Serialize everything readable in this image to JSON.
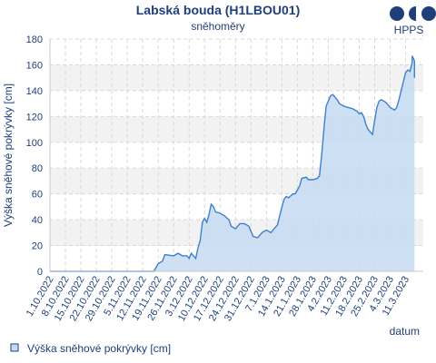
{
  "brand": {
    "text": "HPPS",
    "color": "#1f3f7a"
  },
  "chart_data": {
    "type": "area",
    "title": "Labská bouda (H1LBOU01)",
    "subtitle": "sněhoměry",
    "xlabel": "datum",
    "ylabel": "Výška sněhové pokrývky [cm]",
    "ylim": [
      0,
      180
    ],
    "yticks": [
      0,
      20,
      40,
      60,
      80,
      100,
      120,
      140,
      160,
      180
    ],
    "grid": true,
    "legend_position": "bottom-left",
    "x_start": "2022-10-01",
    "x_end": "2023-03-19",
    "xtick_labels": [
      "1.10.2022",
      "8.10.2022",
      "15.10.2022",
      "22.10.2022",
      "29.10.2022",
      "5.11.2022",
      "12.11.2022",
      "19.11.2022",
      "26.11.2022",
      "3.12.2022",
      "10.12.2022",
      "17.12.2022",
      "24.12.2022",
      "31.12.2022",
      "7.1.2023",
      "14.1.2023",
      "21.1.2023",
      "28.1.2023",
      "4.2.2023",
      "11.2.2023",
      "18.2.2023",
      "25.2.2023",
      "4.3.2023",
      "11.3.2023"
    ],
    "series": [
      {
        "name": "Výška sněhové pokrývky [cm]",
        "color": "#3f7fcf",
        "fill": "#c6dcf2",
        "points": [
          [
            "2022-10-01",
            0
          ],
          [
            "2022-11-17",
            0
          ],
          [
            "2022-11-19",
            6
          ],
          [
            "2022-11-21",
            8
          ],
          [
            "2022-11-22",
            13
          ],
          [
            "2022-11-26",
            12
          ],
          [
            "2022-11-28",
            14
          ],
          [
            "2022-11-30",
            12
          ],
          [
            "2022-12-02",
            12
          ],
          [
            "2022-12-03",
            10
          ],
          [
            "2022-12-04",
            14
          ],
          [
            "2022-12-06",
            10
          ],
          [
            "2022-12-07",
            18
          ],
          [
            "2022-12-08",
            24
          ],
          [
            "2022-12-09",
            38
          ],
          [
            "2022-12-10",
            41
          ],
          [
            "2022-12-11",
            38
          ],
          [
            "2022-12-12",
            44
          ],
          [
            "2022-12-13",
            52
          ],
          [
            "2022-12-14",
            50
          ],
          [
            "2022-12-15",
            46
          ],
          [
            "2022-12-17",
            45
          ],
          [
            "2022-12-19",
            43
          ],
          [
            "2022-12-21",
            40
          ],
          [
            "2022-12-22",
            35
          ],
          [
            "2022-12-24",
            33
          ],
          [
            "2022-12-25",
            35
          ],
          [
            "2022-12-26",
            37
          ],
          [
            "2022-12-28",
            37
          ],
          [
            "2022-12-30",
            35
          ],
          [
            "2022-12-31",
            31
          ],
          [
            "2023-01-01",
            27
          ],
          [
            "2023-01-03",
            26
          ],
          [
            "2023-01-05",
            30
          ],
          [
            "2023-01-07",
            32
          ],
          [
            "2023-01-09",
            30
          ],
          [
            "2023-01-11",
            34
          ],
          [
            "2023-01-12",
            36
          ],
          [
            "2023-01-13",
            43
          ],
          [
            "2023-01-14",
            50
          ],
          [
            "2023-01-15",
            56
          ],
          [
            "2023-01-16",
            58
          ],
          [
            "2023-01-17",
            57
          ],
          [
            "2023-01-19",
            60
          ],
          [
            "2023-01-20",
            60
          ],
          [
            "2023-01-22",
            66
          ],
          [
            "2023-01-23",
            72
          ],
          [
            "2023-01-25",
            73
          ],
          [
            "2023-01-26",
            71
          ],
          [
            "2023-01-28",
            71
          ],
          [
            "2023-01-30",
            72
          ],
          [
            "2023-01-31",
            74
          ],
          [
            "2023-02-01",
            90
          ],
          [
            "2023-02-02",
            110
          ],
          [
            "2023-02-03",
            128
          ],
          [
            "2023-02-05",
            136
          ],
          [
            "2023-02-06",
            137
          ],
          [
            "2023-02-08",
            133
          ],
          [
            "2023-02-09",
            130
          ],
          [
            "2023-02-11",
            128
          ],
          [
            "2023-02-13",
            127
          ],
          [
            "2023-02-15",
            126
          ],
          [
            "2023-02-17",
            124
          ],
          [
            "2023-02-18",
            122
          ],
          [
            "2023-02-19",
            123
          ],
          [
            "2023-02-20",
            120
          ],
          [
            "2023-02-21",
            114
          ],
          [
            "2023-02-22",
            110
          ],
          [
            "2023-02-24",
            106
          ],
          [
            "2023-02-25",
            117
          ],
          [
            "2023-02-26",
            127
          ],
          [
            "2023-02-27",
            132
          ],
          [
            "2023-02-28",
            133
          ],
          [
            "2023-03-02",
            131
          ],
          [
            "2023-03-04",
            127
          ],
          [
            "2023-03-06",
            125
          ],
          [
            "2023-03-07",
            127
          ],
          [
            "2023-03-08",
            133
          ],
          [
            "2023-03-10",
            147
          ],
          [
            "2023-03-11",
            154
          ],
          [
            "2023-03-12",
            156
          ],
          [
            "2023-03-13",
            155
          ],
          [
            "2023-03-14",
            162
          ],
          [
            "2023-03-14",
            167
          ],
          [
            "2023-03-15",
            163
          ],
          [
            "2023-03-15",
            150
          ]
        ]
      }
    ]
  }
}
